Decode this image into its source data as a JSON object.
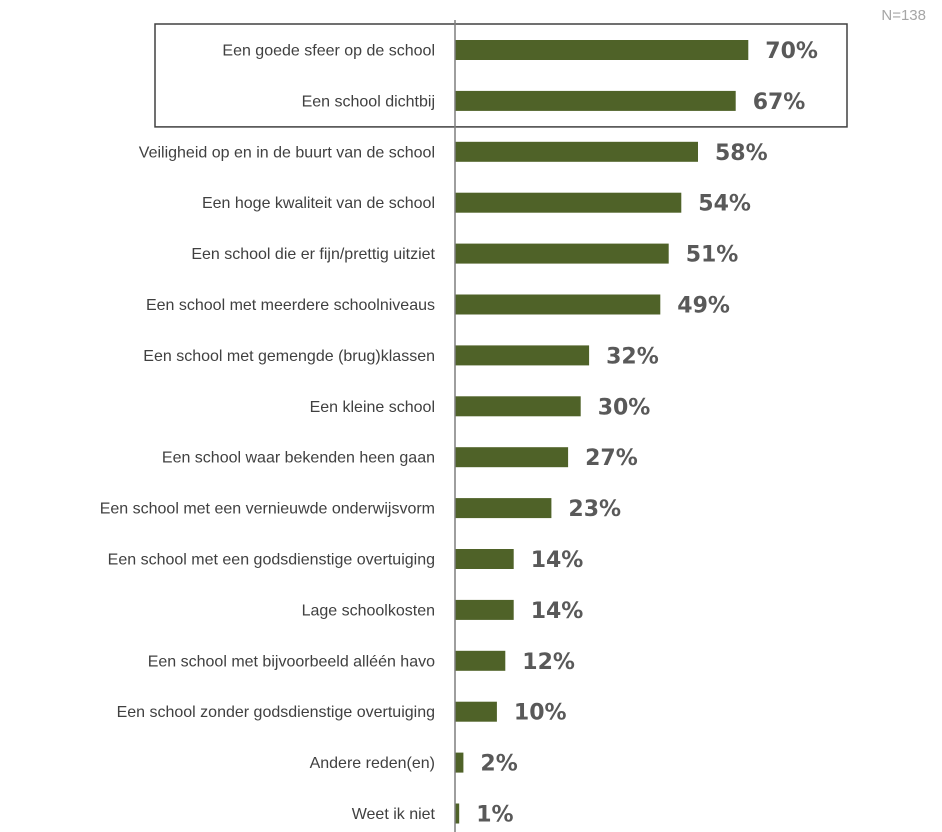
{
  "chart_data": {
    "type": "bar",
    "orientation": "horizontal",
    "sample_note": "N=138",
    "categories": [
      "Een goede sfeer op de school",
      "Een school dichtbij",
      "Veiligheid op en in de buurt van de school",
      "Een hoge kwaliteit van de school",
      "Een school die er fijn/prettig uitziet",
      "Een school met meerdere schoolniveaus",
      "Een school met gemengde (brug)klassen",
      "Een kleine school",
      "Een school waar bekenden heen gaan",
      "Een school met een vernieuwde onderwijsvorm",
      "Een school met een godsdienstige overtuiging",
      "Lage schoolkosten",
      "Een school met bijvoorbeeld alléén havo",
      "Een school zonder godsdienstige overtuiging",
      "Andere reden(en)",
      "Weet ik niet"
    ],
    "values": [
      70,
      67,
      58,
      54,
      51,
      49,
      32,
      30,
      27,
      23,
      14,
      14,
      12,
      10,
      2,
      1
    ],
    "value_labels": [
      "70%",
      "67%",
      "58%",
      "54%",
      "51%",
      "49%",
      "32%",
      "30%",
      "27%",
      "23%",
      "14%",
      "14%",
      "12%",
      "10%",
      "2%",
      "1%"
    ],
    "highlighted_categories": [
      "Een goede sfeer op de school",
      "Een school dichtbij"
    ],
    "xlim": [
      0,
      100
    ],
    "grid": false,
    "legend": "none",
    "colors": {
      "bar": "#4f6228",
      "value_text": "#595959",
      "category_text": "#404040",
      "axis": "#7f7f7f",
      "highlight_box": "#404040",
      "note_text": "#a6a6a6"
    }
  }
}
